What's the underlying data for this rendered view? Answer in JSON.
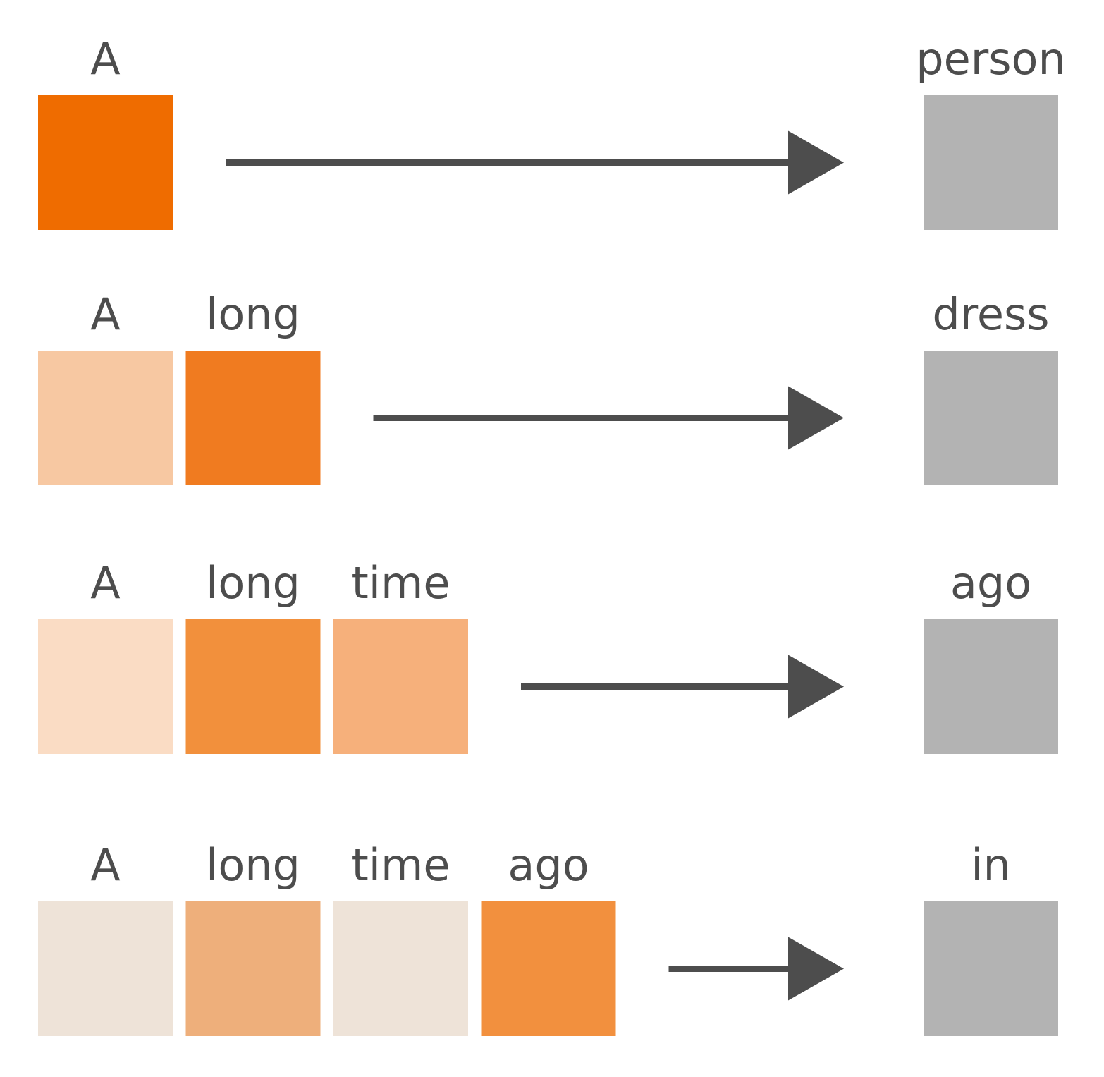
{
  "rows": [
    {
      "tokens": [
        {
          "word": "A",
          "color": "#ef6c00"
        }
      ],
      "prediction": {
        "word": "person",
        "color": "#b3b3b3"
      }
    },
    {
      "tokens": [
        {
          "word": "A",
          "color": "#f7c8a2"
        },
        {
          "word": "long",
          "color": "#f07b20"
        }
      ],
      "prediction": {
        "word": "dress",
        "color": "#b3b3b3"
      }
    },
    {
      "tokens": [
        {
          "word": "A",
          "color": "#fadcc4"
        },
        {
          "word": "long",
          "color": "#f2903c"
        },
        {
          "word": "time",
          "color": "#f6b07b"
        }
      ],
      "prediction": {
        "word": "ago",
        "color": "#b3b3b3"
      }
    },
    {
      "tokens": [
        {
          "word": "A",
          "color": "#eee3d8"
        },
        {
          "word": "long",
          "color": "#eeaf7b"
        },
        {
          "word": "time",
          "color": "#eee3d8"
        },
        {
          "word": "ago",
          "color": "#f2903e"
        }
      ],
      "prediction": {
        "word": "in",
        "color": "#b3b3b3"
      }
    }
  ],
  "arrow_color": "#4d4d4d"
}
